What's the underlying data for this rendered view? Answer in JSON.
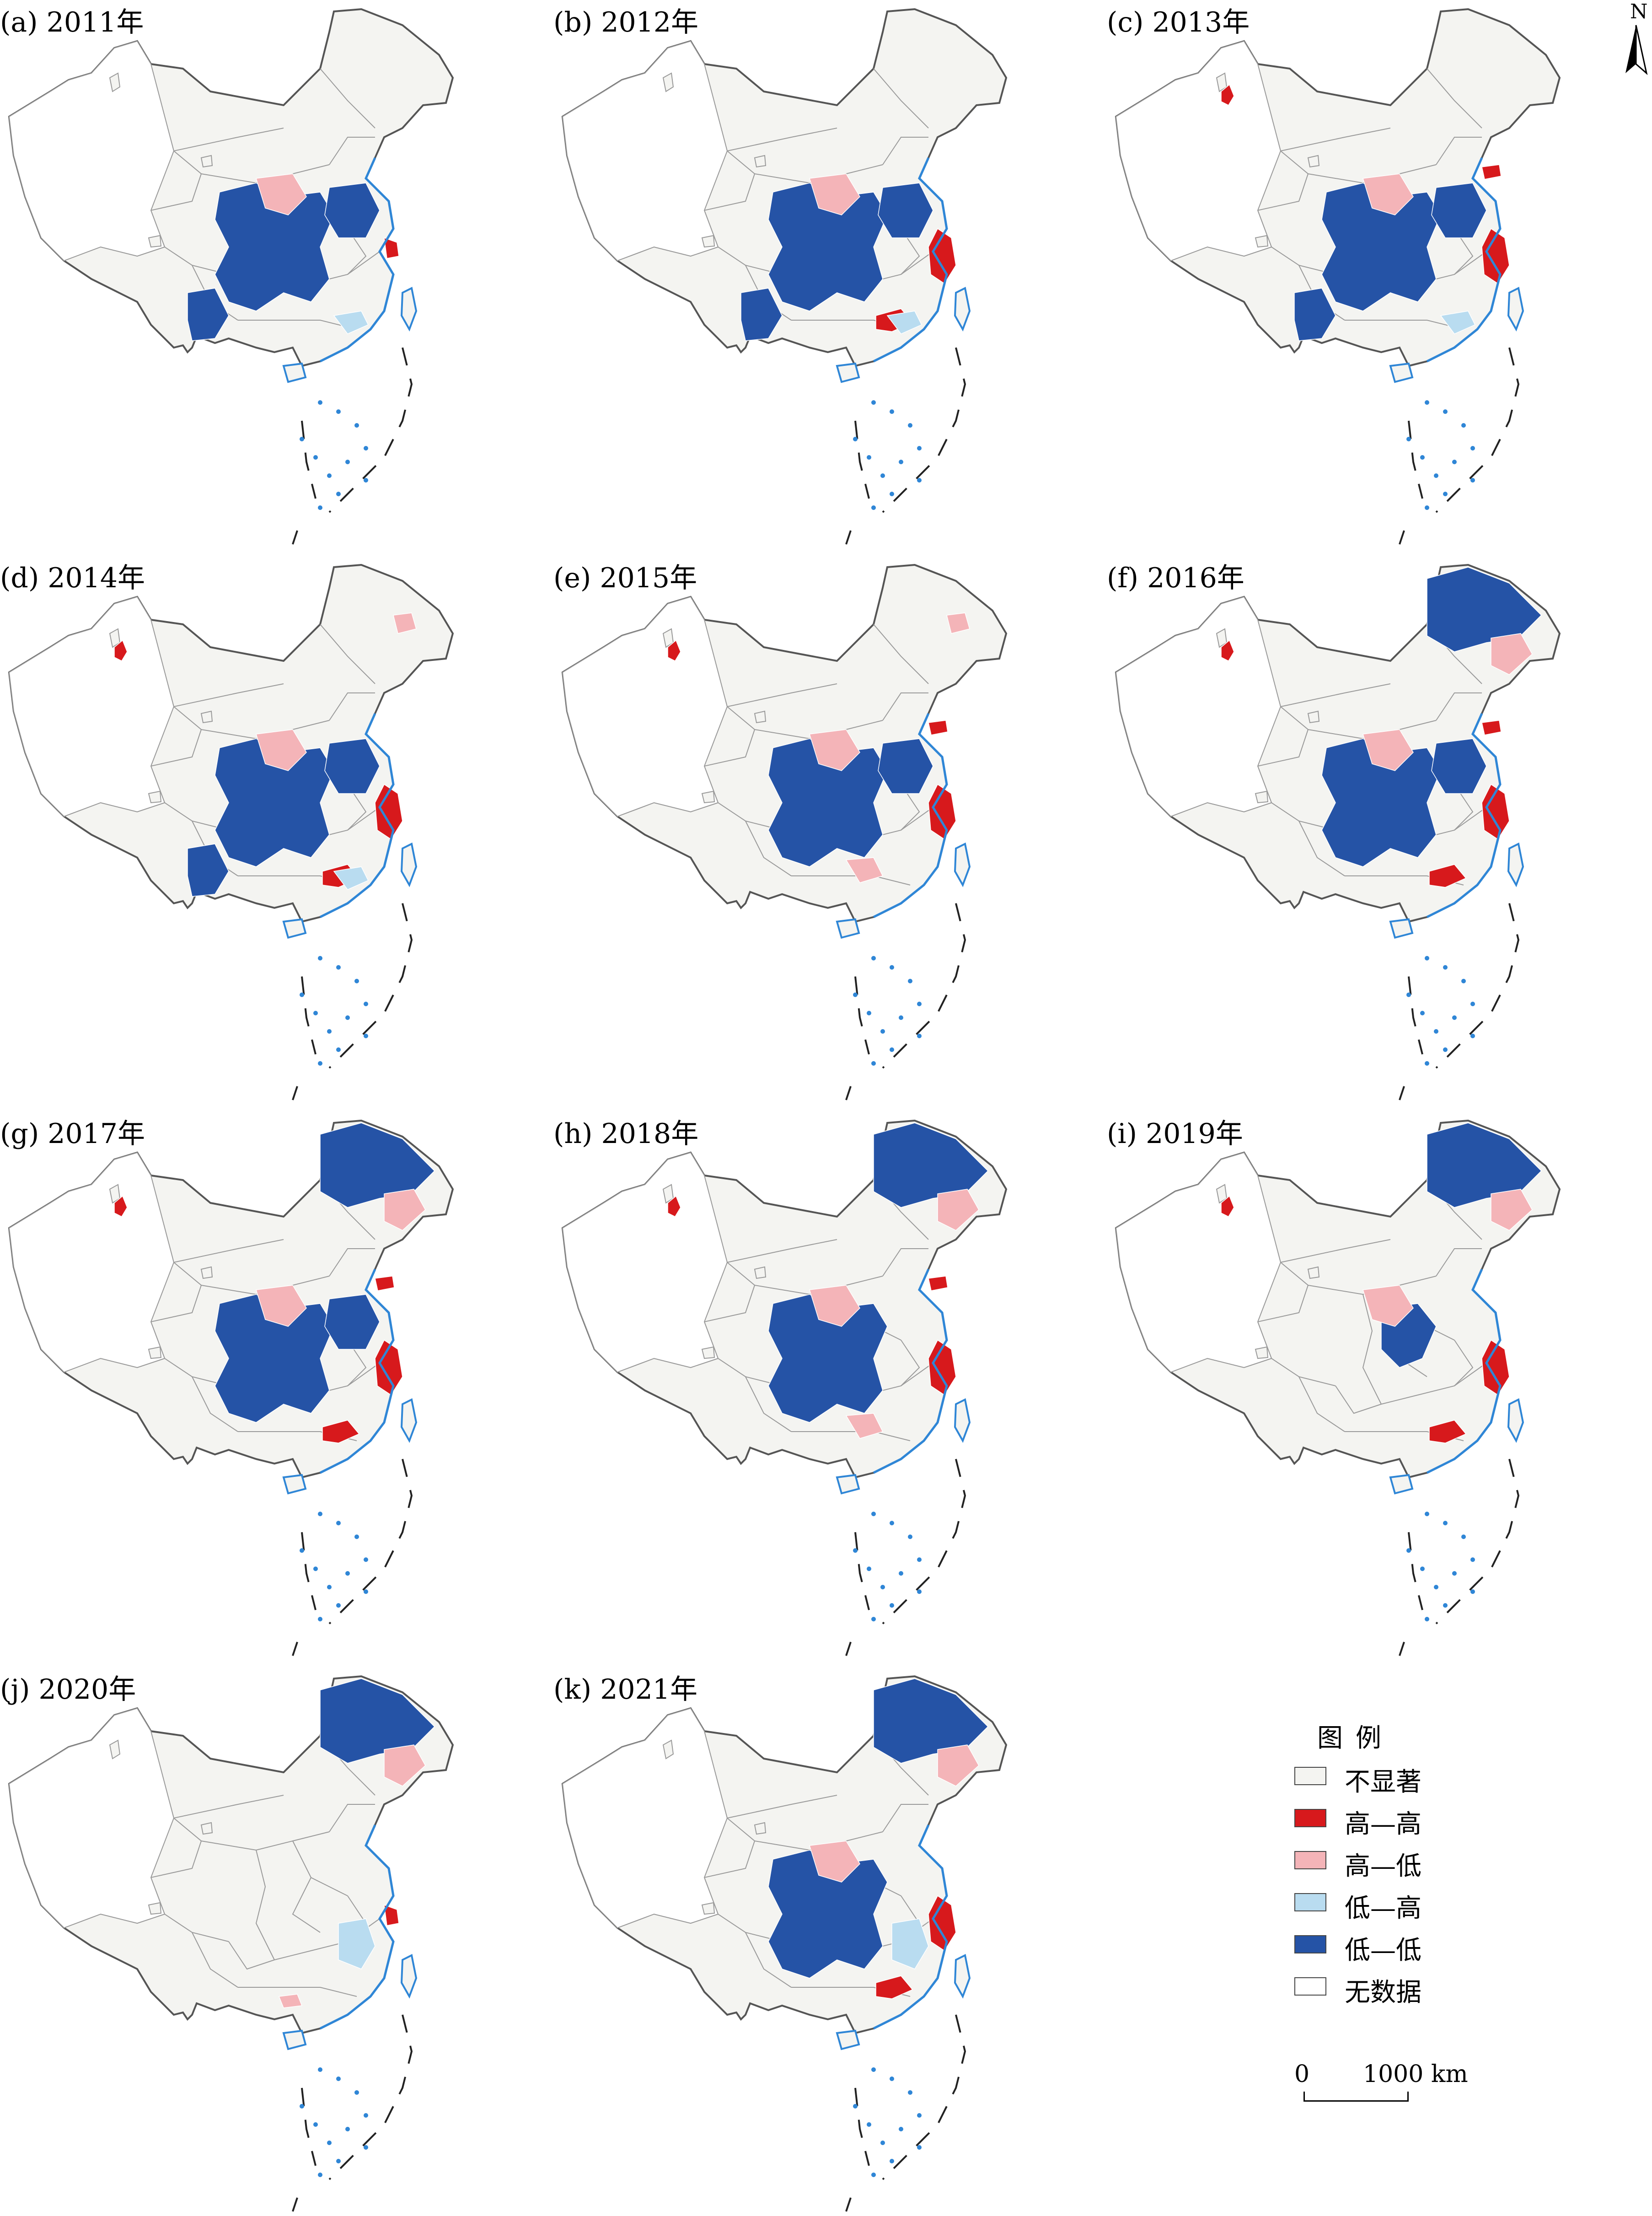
{
  "panels": [
    {
      "label": "(a) 2011年",
      "clusters": [
        "ll-west",
        "ll-central",
        "ll-southwest",
        "lh-south",
        "hl-central",
        "hh-east-small"
      ]
    },
    {
      "label": "(b) 2012年",
      "clusters": [
        "ll-west",
        "ll-central",
        "ll-southwest",
        "hh-east",
        "hh-south",
        "hl-central",
        "lh-south"
      ]
    },
    {
      "label": "(c) 2013年",
      "clusters": [
        "hh-xinjiang",
        "ll-west",
        "ll-central",
        "ll-southwest",
        "hh-east",
        "hh-bohai",
        "hl-central",
        "lh-south"
      ]
    },
    {
      "label": "(d) 2014年",
      "clusters": [
        "hh-xinjiang",
        "hl-northeast-small",
        "ll-west",
        "ll-central",
        "ll-southwest",
        "hh-east",
        "hh-south",
        "hl-central",
        "lh-south"
      ]
    },
    {
      "label": "(e) 2015年",
      "clusters": [
        "hh-xinjiang",
        "hl-northeast-small",
        "ll-west",
        "ll-central",
        "hh-east",
        "hh-bohai",
        "hl-central",
        "hl-south"
      ]
    },
    {
      "label": "(f) 2016年",
      "clusters": [
        "hh-xinjiang",
        "ll-northeast",
        "hl-northeast",
        "ll-west",
        "ll-central",
        "hh-east",
        "hh-bohai",
        "hl-central",
        "hh-south"
      ]
    },
    {
      "label": "(g) 2017年",
      "clusters": [
        "hh-xinjiang",
        "ll-northeast",
        "hl-northeast",
        "ll-west",
        "ll-central",
        "hh-east",
        "hh-bohai",
        "hl-central",
        "hh-south"
      ]
    },
    {
      "label": "(h) 2018年",
      "clusters": [
        "hh-xinjiang",
        "ll-northeast",
        "hl-northeast",
        "ll-west",
        "hh-east",
        "hh-bohai",
        "hl-central",
        "hl-south"
      ]
    },
    {
      "label": "(i) 2019年",
      "clusters": [
        "hh-xinjiang",
        "ll-northeast",
        "hl-northeast",
        "ll-west-small",
        "hh-east",
        "hl-central",
        "hh-south"
      ]
    },
    {
      "label": "(j) 2020年",
      "clusters": [
        "ll-northeast",
        "hl-northeast",
        "lh-east",
        "hh-east-small",
        "hl-south-small"
      ]
    },
    {
      "label": "(k) 2021年",
      "clusters": [
        "ll-northeast",
        "hl-northeast",
        "ll-west",
        "hh-east",
        "lh-east",
        "hl-central",
        "hh-south"
      ]
    }
  ],
  "north_arrow": {
    "letter": "N"
  },
  "legend": {
    "title": "图例",
    "items": [
      {
        "label": "不显著",
        "color": "#f4f4f1"
      },
      {
        "label": "高—高",
        "color": "#d7191c"
      },
      {
        "label": "高—低",
        "color": "#f4b4b8"
      },
      {
        "label": "低—高",
        "color": "#b9dcf0"
      },
      {
        "label": "低—低",
        "color": "#2553a6"
      },
      {
        "label": "无数据",
        "color": "#ffffff"
      }
    ]
  },
  "scale_bar": {
    "zero": "0",
    "max": "1000 km"
  },
  "colors": {
    "boundary": "#555555",
    "province": "#9a9a9a",
    "coast": "#2f86d6",
    "not_significant": "#f4f4f1",
    "high_high": "#d7191c",
    "high_low": "#f4b4b8",
    "low_high": "#b9dcf0",
    "low_low": "#2553a6",
    "no_data": "#ffffff"
  }
}
